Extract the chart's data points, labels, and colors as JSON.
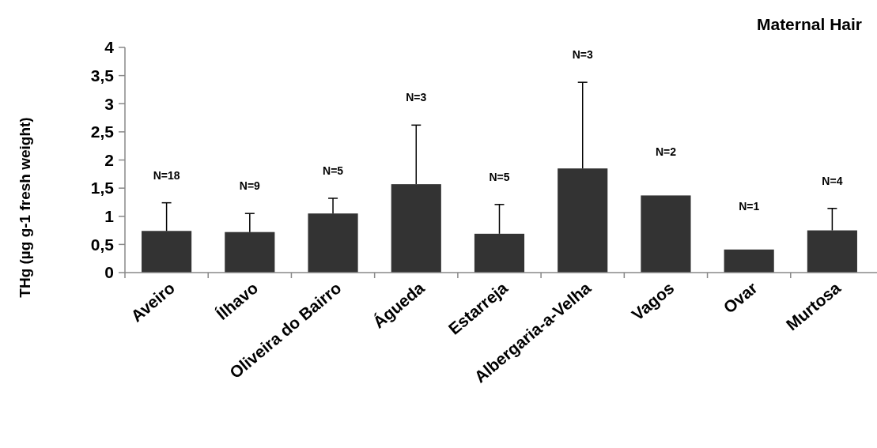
{
  "chart_data": {
    "type": "bar",
    "title": "Maternal Hair",
    "ylabel": "THg (µg g-1 fresh weight)",
    "categories": [
      "Aveiro",
      "Ílhavo",
      "Oliveira do Bairro",
      "Águeda",
      "Estarreja",
      "Albergaria-a-Velha",
      "Vagos",
      "Ovar",
      "Murtosa"
    ],
    "values": [
      0.74,
      0.72,
      1.05,
      1.57,
      0.69,
      1.85,
      1.37,
      0.41,
      0.75
    ],
    "errors": [
      0.5,
      0.33,
      0.27,
      1.05,
      0.52,
      1.53,
      null,
      null,
      0.39
    ],
    "color": "#333333",
    "ylim": [
      0,
      4
    ],
    "yticks": [
      0,
      {
        "value": 0.5,
        "label": "0,5"
      },
      1,
      {
        "value": 1.5,
        "label": "1,5"
      },
      2,
      {
        "value": 2.5,
        "label": "2,5"
      },
      3,
      {
        "value": 3.5,
        "label": "3,5"
      },
      4
    ],
    "annotations": [
      "N=18",
      "N=9",
      "N=5",
      "N=3",
      "N=5",
      "N=3",
      "N=2",
      "N=1",
      "N=4"
    ]
  }
}
